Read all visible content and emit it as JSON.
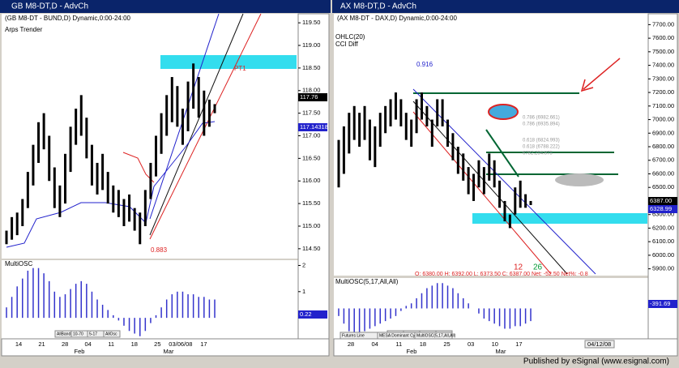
{
  "left": {
    "window_title": "GB M8-DT,D - AdvCh",
    "header": "(GB M8-DT - BUND,D) Dynamic,0:00-24:00",
    "study": "Arps Trender",
    "ylim": [
      114.3,
      119.7
    ],
    "yticks": [
      {
        "value": 114.5,
        "label": "114.50"
      },
      {
        "value": 115,
        "label": "115.00"
      },
      {
        "value": 115.5,
        "label": "115.50"
      },
      {
        "value": 116,
        "label": "116.00"
      },
      {
        "value": 116.5,
        "label": "116.50"
      },
      {
        "value": 117,
        "label": "117.00"
      },
      {
        "value": 117.5,
        "label": "117.50"
      },
      {
        "value": 118,
        "label": "118.00"
      },
      {
        "value": 118.5,
        "label": "118.50"
      },
      {
        "value": 119,
        "label": "119.00"
      },
      {
        "value": 119.5,
        "label": "119.50"
      }
    ],
    "price_tags": [
      "117.76",
      "117.14318"
    ],
    "annotations": [
      "0.883",
      "PT1"
    ],
    "bars": [
      [
        114.9,
        114.6
      ],
      [
        115.2,
        114.7
      ],
      [
        115.3,
        114.8
      ],
      [
        115.6,
        115.0
      ],
      [
        116.2,
        115.4
      ],
      [
        116.8,
        115.9
      ],
      [
        117.3,
        116.4
      ],
      [
        117.5,
        116.7
      ],
      [
        117.0,
        116.0
      ],
      [
        116.3,
        115.4
      ],
      [
        115.9,
        115.2
      ],
      [
        116.6,
        115.5
      ],
      [
        117.2,
        116.2
      ],
      [
        117.6,
        116.8
      ],
      [
        117.9,
        117.0
      ],
      [
        117.4,
        116.5
      ],
      [
        116.8,
        115.9
      ],
      [
        116.4,
        115.7
      ],
      [
        116.6,
        115.8
      ],
      [
        116.2,
        115.5
      ],
      [
        115.9,
        115.3
      ],
      [
        115.8,
        115.2
      ],
      [
        115.6,
        115.0
      ],
      [
        115.7,
        115.1
      ],
      [
        115.4,
        114.9
      ],
      [
        115.3,
        114.6
      ],
      [
        115.8,
        115.0
      ],
      [
        116.4,
        115.6
      ],
      [
        117.0,
        116.1
      ],
      [
        117.5,
        116.6
      ],
      [
        117.9,
        117.0
      ],
      [
        118.3,
        117.3
      ],
      [
        118.1,
        117.2
      ],
      [
        117.6,
        116.8
      ],
      [
        118.2,
        117.1
      ],
      [
        118.6,
        117.6
      ],
      [
        118.3,
        117.4
      ],
      [
        118.0,
        117.0
      ],
      [
        117.8,
        117.2
      ],
      [
        117.7,
        117.5
      ]
    ],
    "osc_title": "MultiOSC",
    "osc_ylim": [
      -0.8,
      2.2
    ],
    "osc_yticks": [
      1,
      2
    ],
    "osc_tag": "0.22",
    "osc_values": [
      0.4,
      0.8,
      1.2,
      1.5,
      1.8,
      1.9,
      1.9,
      1.7,
      1.4,
      1.0,
      0.8,
      0.9,
      1.1,
      1.3,
      1.4,
      1.3,
      1.0,
      0.7,
      0.5,
      0.3,
      0.1,
      -0.1,
      -0.3,
      -0.5,
      -0.6,
      -0.7,
      -0.5,
      -0.2,
      0.1,
      0.4,
      0.7,
      0.9,
      1.0,
      1.0,
      0.9,
      0.9,
      0.8,
      0.8,
      0.7,
      0.7
    ],
    "dates": [
      "14",
      "21",
      "28",
      "04",
      "11",
      "18",
      "25",
      "03/06/08",
      "17"
    ],
    "months": [
      "Feb",
      "Mar"
    ],
    "tabs": [
      "AllBands",
      "10-70",
      "5-17",
      "AllOsc"
    ]
  },
  "right": {
    "window_title": "AX M8-DT,D - AdvCh",
    "header": "(AX M8-DT - DAX,D) Dynamic,0:00-24:00",
    "studies": [
      "OHLC(20)",
      "CCI Diff"
    ],
    "ylim": [
      5850,
      7780
    ],
    "yticks": [
      {
        "value": 5900,
        "label": "5900.00"
      },
      {
        "value": 6000,
        "label": "6000.00"
      },
      {
        "value": 6100,
        "label": "6100.00"
      },
      {
        "value": 6200,
        "label": "6200.00"
      },
      {
        "value": 6300,
        "label": "6300.00"
      },
      {
        "value": 6400,
        "label": "6400.00"
      },
      {
        "value": 6500,
        "label": "6500.00"
      },
      {
        "value": 6600,
        "label": "6600.00"
      },
      {
        "value": 6700,
        "label": "6700.00"
      },
      {
        "value": 6800,
        "label": "6800.00"
      },
      {
        "value": 6900,
        "label": "6900.00"
      },
      {
        "value": 7000,
        "label": "7000.00"
      },
      {
        "value": 7100,
        "label": "7100.00"
      },
      {
        "value": 7200,
        "label": "7200.00"
      },
      {
        "value": 7300,
        "label": "7300.00"
      },
      {
        "value": 7400,
        "label": "7400.00"
      },
      {
        "value": 7500,
        "label": "7500.00"
      },
      {
        "value": 7600,
        "label": "7600.00"
      },
      {
        "value": 7700,
        "label": "7700.00"
      }
    ],
    "price_tags": [
      "6387.00",
      "6328.99"
    ],
    "annotations": [
      "0.916",
      "12",
      "26"
    ],
    "fib_labels": [
      "0.786 (6982.661)",
      "0.786 (6935.894)",
      "0.618 (6824.993)",
      "0.618 (6788.222)",
      "6782.254.875"
    ],
    "stats": "O: 6380.00    H: 6392.00    L: 6373.50    C: 6387.00    Net: -52.50    Net%: -0.8",
    "bars": [
      [
        6850,
        6500
      ],
      [
        6950,
        6600
      ],
      [
        7050,
        6750
      ],
      [
        7100,
        6850
      ],
      [
        7050,
        6800
      ],
      [
        7100,
        6850
      ],
      [
        7000,
        6700
      ],
      [
        6950,
        6650
      ],
      [
        7050,
        6800
      ],
      [
        7100,
        6900
      ],
      [
        7150,
        6950
      ],
      [
        7200,
        7000
      ],
      [
        7150,
        6950
      ],
      [
        7050,
        6850
      ],
      [
        7000,
        6800
      ],
      [
        7150,
        6900
      ],
      [
        7200,
        7000
      ],
      [
        7100,
        6950
      ],
      [
        7000,
        6800
      ],
      [
        7150,
        6950
      ],
      [
        7150,
        6950
      ],
      [
        7000,
        6800
      ],
      [
        6900,
        6700
      ],
      [
        6800,
        6600
      ],
      [
        6750,
        6550
      ],
      [
        6650,
        6450
      ],
      [
        6600,
        6400
      ],
      [
        6700,
        6500
      ],
      [
        6650,
        6450
      ],
      [
        6750,
        6550
      ],
      [
        6700,
        6500
      ],
      [
        6550,
        6350
      ],
      [
        6400,
        6250
      ],
      [
        6300,
        6200
      ],
      [
        6500,
        6300
      ],
      [
        6550,
        6350
      ],
      [
        6450,
        6350
      ],
      [
        6400,
        6370
      ]
    ],
    "osc_title": "MultiOSC(5,17,All,All)",
    "osc_ylim": [
      -1.2,
      1.2
    ],
    "osc_tag": "-391.69",
    "osc_values": [
      -0.3,
      -0.6,
      -0.9,
      -1.1,
      -1.0,
      -0.9,
      -0.8,
      -0.7,
      -0.6,
      -0.5,
      -0.4,
      -0.3,
      -0.1,
      0.1,
      0.2,
      0.4,
      0.6,
      0.8,
      0.9,
      1.0,
      1.0,
      0.9,
      0.8,
      0.6,
      0.4,
      0.2,
      0.0,
      -0.2,
      -0.4,
      -0.5,
      -0.6,
      -0.7,
      -0.8,
      -0.8,
      -0.7,
      -0.7,
      -0.6,
      -0.5
    ],
    "dates": [
      "28",
      "04",
      "11",
      "18",
      "25",
      "03",
      "10",
      "17"
    ],
    "months": [
      "Feb",
      "Mar"
    ],
    "date_box": "04/12/08",
    "tabs": [
      "AllBands",
      "10-70",
      "5-17",
      "AllOsc"
    ],
    "bottom_tabs": [
      "Futures Line",
      "MESA Dominant Cycle",
      "MultiOSC(5,17,All,All)"
    ]
  },
  "footer": "Published by eSignal (www.esignal.com)"
}
